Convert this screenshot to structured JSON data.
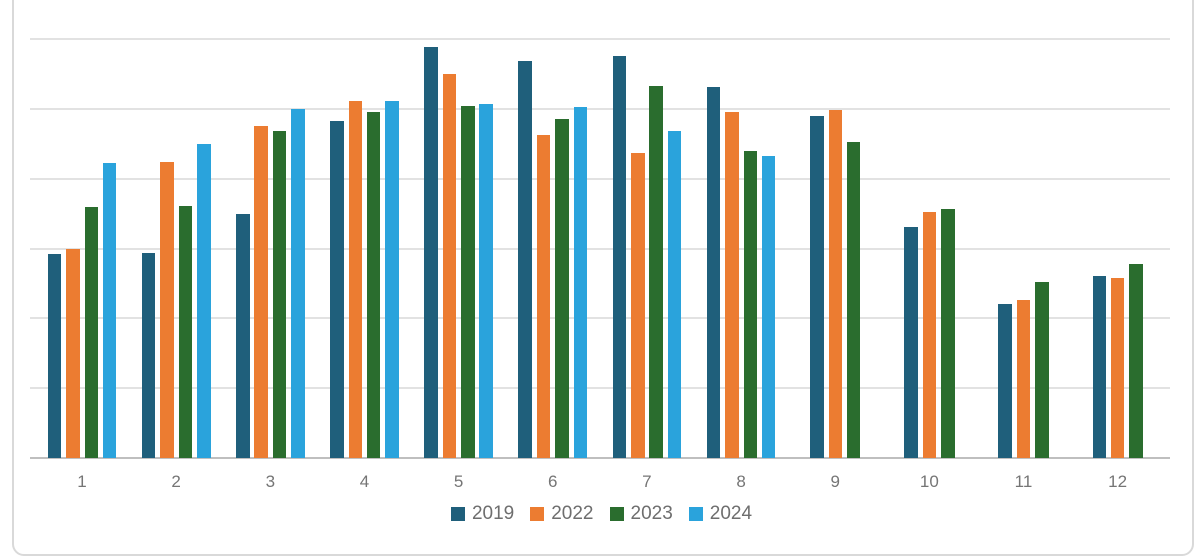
{
  "chart_data": {
    "type": "bar",
    "title": "",
    "xlabel": "",
    "ylabel": "",
    "categories": [
      "1",
      "2",
      "3",
      "4",
      "5",
      "6",
      "7",
      "8",
      "9",
      "10",
      "11",
      "12"
    ],
    "series": [
      {
        "name": "2019",
        "color": "#1f5f7b",
        "values": [
          29.2,
          29.4,
          35.0,
          48.3,
          58.8,
          56.8,
          57.6,
          53.2,
          49.0,
          33.1,
          22.0,
          26.1
        ]
      },
      {
        "name": "2022",
        "color": "#ec7c31",
        "values": [
          30.0,
          42.4,
          47.6,
          51.2,
          55.0,
          46.3,
          43.7,
          49.6,
          49.9,
          35.3,
          22.7,
          25.8
        ]
      },
      {
        "name": "2023",
        "color": "#2a6d2e",
        "values": [
          36.0,
          36.1,
          46.9,
          49.6,
          50.4,
          48.5,
          53.3,
          44.0,
          45.2,
          35.7,
          25.2,
          27.8
        ]
      },
      {
        "name": "2024",
        "color": "#2aa3dc",
        "values": [
          42.3,
          45.0,
          50.0,
          51.1,
          50.7,
          50.3,
          46.9,
          43.3,
          null,
          null,
          null,
          null
        ]
      }
    ],
    "ylim": [
      0,
      60
    ],
    "gridline_step": 10,
    "y_tick_labels_shown": false,
    "grid": "horizontal",
    "legend_position": "bottom"
  },
  "style_colors": {
    "gridline": "#e2e2e2",
    "axis_line": "#bfbfbf",
    "frame_border": "#d9d9d9",
    "label_text": "#757575"
  }
}
